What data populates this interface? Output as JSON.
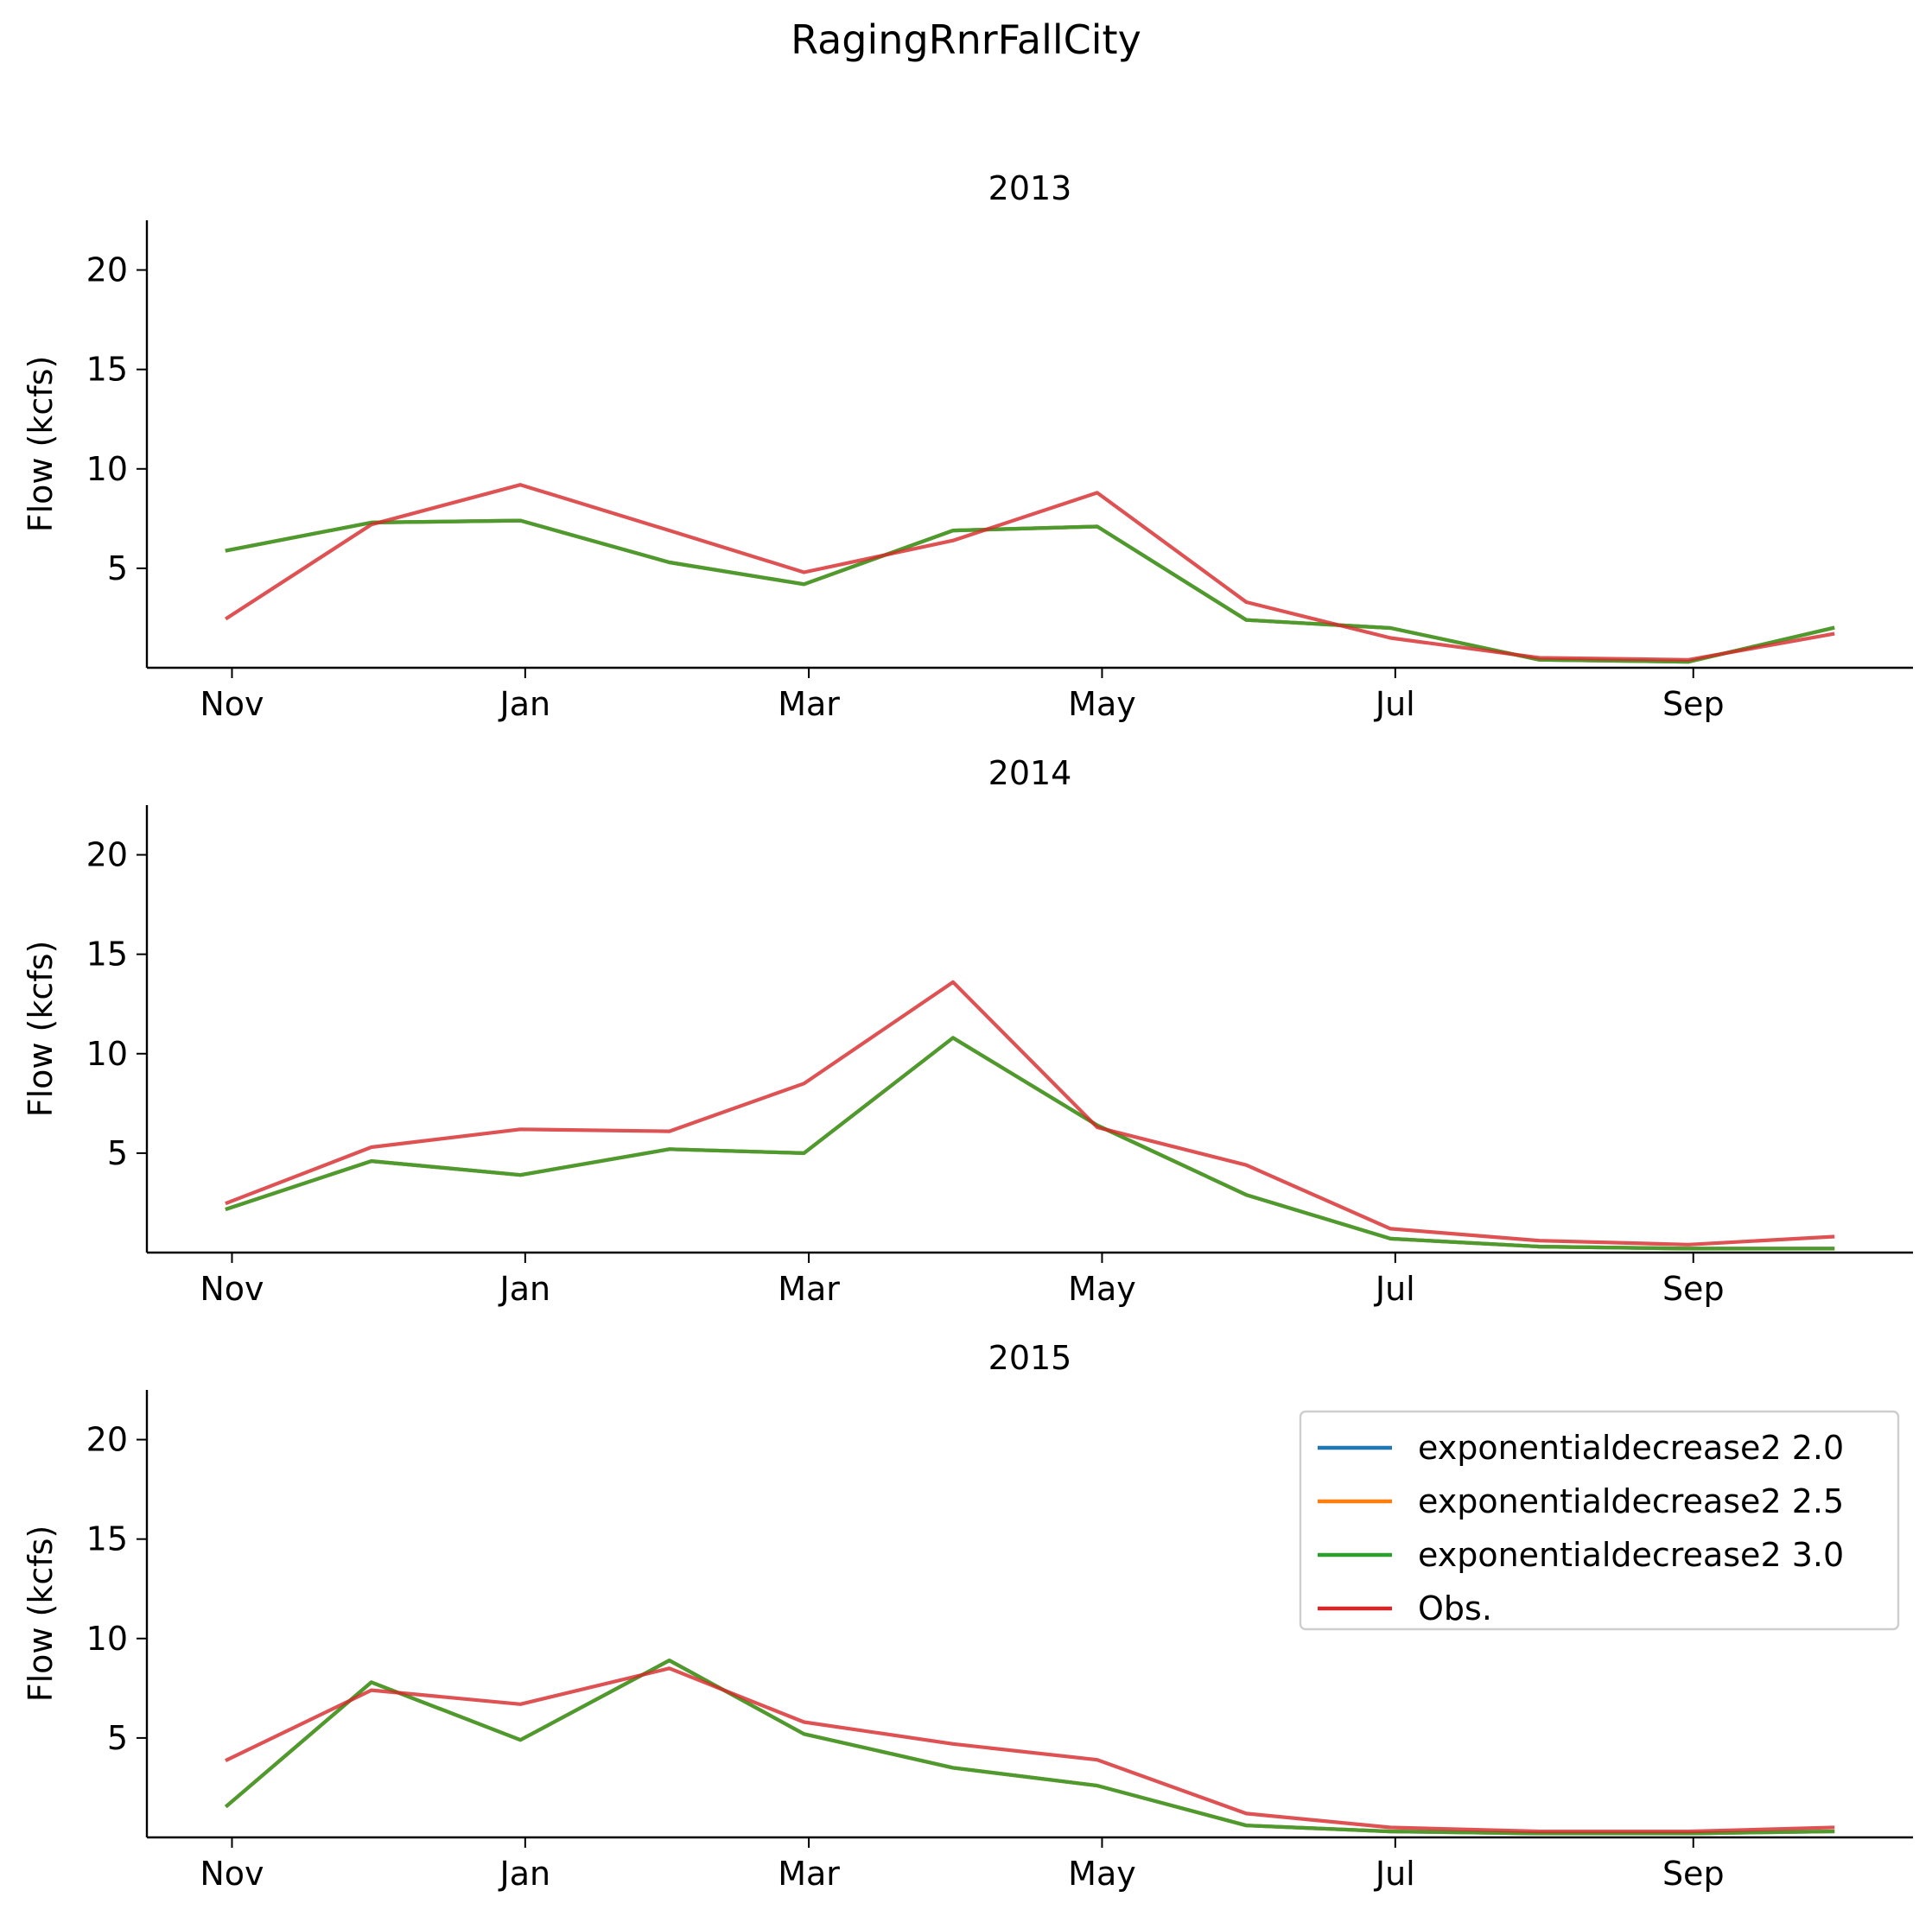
{
  "figure": {
    "suptitle": "RagingRnrFallCity"
  },
  "colors": {
    "exponentialdecrease2 2.0": "#1f77b4",
    "exponentialdecrease2 2.5": "#ff7f0e",
    "exponentialdecrease2 3.0": "#2ca02c",
    "Obs.": "#d62728"
  },
  "chart_data": [
    {
      "type": "line",
      "title": "2013",
      "xlabel": "",
      "ylabel": "Flow (kcfs)",
      "ylim": [
        0,
        22.5
      ],
      "yticks": [
        5,
        10,
        15,
        20
      ],
      "xticks": [
        "Nov",
        "Jan",
        "Mar",
        "May",
        "Jul",
        "Sep"
      ],
      "x": [
        "2012-10-31",
        "2012-11-30",
        "2012-12-31",
        "2013-01-31",
        "2013-02-28",
        "2013-03-31",
        "2013-04-30",
        "2013-05-31",
        "2013-06-30",
        "2013-07-31",
        "2013-08-31",
        "2013-09-30"
      ],
      "series": [
        {
          "name": "exponentialdecrease2 2.0",
          "values": [
            5.9,
            7.3,
            7.4,
            5.3,
            4.2,
            6.9,
            7.1,
            2.4,
            2.0,
            0.4,
            0.3,
            2.0
          ]
        },
        {
          "name": "exponentialdecrease2 2.5",
          "values": [
            5.9,
            7.3,
            7.4,
            5.3,
            4.2,
            6.9,
            7.1,
            2.4,
            2.0,
            0.4,
            0.3,
            2.0
          ]
        },
        {
          "name": "exponentialdecrease2 3.0",
          "values": [
            5.9,
            7.3,
            7.4,
            5.3,
            4.2,
            6.9,
            7.1,
            2.4,
            2.0,
            0.4,
            0.3,
            2.0
          ]
        },
        {
          "name": "Obs.",
          "values": [
            2.5,
            7.2,
            9.2,
            6.9,
            4.8,
            6.4,
            8.8,
            3.3,
            1.5,
            0.5,
            0.4,
            1.7
          ]
        }
      ]
    },
    {
      "type": "line",
      "title": "2014",
      "xlabel": "",
      "ylabel": "Flow (kcfs)",
      "ylim": [
        0,
        22.5
      ],
      "yticks": [
        5,
        10,
        15,
        20
      ],
      "xticks": [
        "Nov",
        "Jan",
        "Mar",
        "May",
        "Jul",
        "Sep"
      ],
      "x": [
        "2013-10-31",
        "2013-11-30",
        "2013-12-31",
        "2014-01-31",
        "2014-02-28",
        "2014-03-31",
        "2014-04-30",
        "2014-05-31",
        "2014-06-30",
        "2014-07-31",
        "2014-08-31",
        "2014-09-30"
      ],
      "series": [
        {
          "name": "exponentialdecrease2 2.0",
          "values": [
            2.2,
            4.6,
            3.9,
            5.2,
            5.0,
            10.8,
            6.4,
            2.9,
            0.7,
            0.3,
            0.2,
            0.2
          ]
        },
        {
          "name": "exponentialdecrease2 2.5",
          "values": [
            2.2,
            4.6,
            3.9,
            5.2,
            5.0,
            10.8,
            6.4,
            2.9,
            0.7,
            0.3,
            0.2,
            0.2
          ]
        },
        {
          "name": "exponentialdecrease2 3.0",
          "values": [
            2.2,
            4.6,
            3.9,
            5.2,
            5.0,
            10.8,
            6.4,
            2.9,
            0.7,
            0.3,
            0.2,
            0.2
          ]
        },
        {
          "name": "Obs.",
          "values": [
            2.5,
            5.3,
            6.2,
            6.1,
            8.5,
            13.6,
            6.3,
            4.4,
            1.2,
            0.6,
            0.4,
            0.8
          ]
        }
      ]
    },
    {
      "type": "line",
      "title": "2015",
      "xlabel": "",
      "ylabel": "Flow (kcfs)",
      "ylim": [
        0,
        22.5
      ],
      "yticks": [
        5,
        10,
        15,
        20
      ],
      "xticks": [
        "Nov",
        "Jan",
        "Mar",
        "May",
        "Jul",
        "Sep"
      ],
      "x": [
        "2014-10-31",
        "2014-11-30",
        "2014-12-31",
        "2015-01-31",
        "2015-02-28",
        "2015-03-31",
        "2015-04-30",
        "2015-05-31",
        "2015-06-30",
        "2015-07-31",
        "2015-08-31",
        "2015-09-30"
      ],
      "legend": {
        "placement": "upper right",
        "entries": [
          "exponentialdecrease2 2.0",
          "exponentialdecrease2 2.5",
          "exponentialdecrease2 3.0",
          "Obs."
        ]
      },
      "series": [
        {
          "name": "exponentialdecrease2 2.0",
          "values": [
            1.6,
            7.8,
            4.9,
            8.9,
            5.2,
            3.5,
            2.6,
            0.6,
            0.3,
            0.2,
            0.2,
            0.3
          ]
        },
        {
          "name": "exponentialdecrease2 2.5",
          "values": [
            1.6,
            7.8,
            4.9,
            8.9,
            5.2,
            3.5,
            2.6,
            0.6,
            0.3,
            0.2,
            0.2,
            0.3
          ]
        },
        {
          "name": "exponentialdecrease2 3.0",
          "values": [
            1.6,
            7.8,
            4.9,
            8.9,
            5.2,
            3.5,
            2.6,
            0.6,
            0.3,
            0.2,
            0.2,
            0.3
          ]
        },
        {
          "name": "Obs.",
          "values": [
            3.9,
            7.4,
            6.7,
            8.5,
            5.8,
            4.7,
            3.9,
            1.2,
            0.5,
            0.3,
            0.3,
            0.5
          ]
        }
      ]
    }
  ]
}
